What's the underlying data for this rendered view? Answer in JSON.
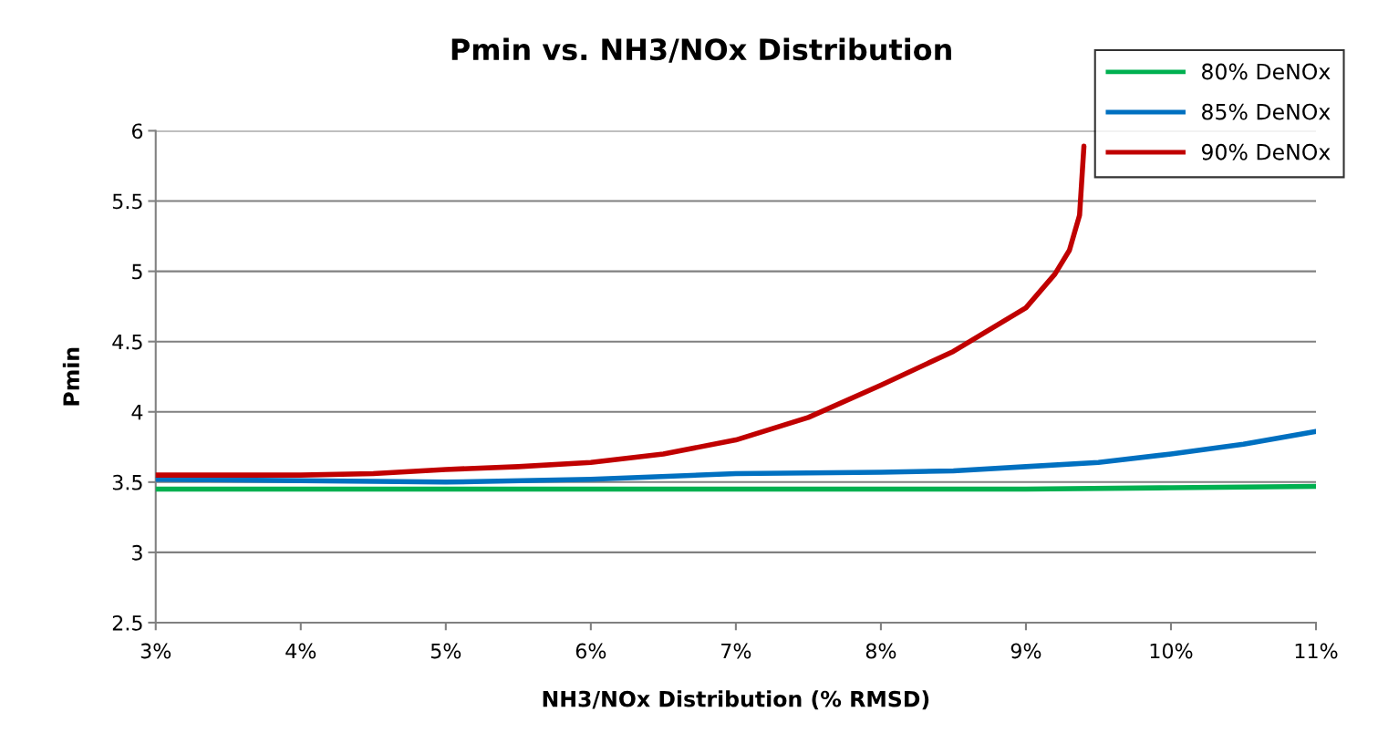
{
  "chart_data": {
    "type": "line",
    "title": "Pmin vs. NH3/NOx Distribution",
    "xlabel": "NH3/NOx Distribution (% RMSD)",
    "ylabel": "Pmin",
    "xlim": [
      3,
      11
    ],
    "xticks": [
      {
        "value": 3,
        "label": "3%"
      },
      {
        "value": 4,
        "label": "4%"
      },
      {
        "value": 5,
        "label": "5%"
      },
      {
        "value": 6,
        "label": "6%"
      },
      {
        "value": 7,
        "label": "7%"
      },
      {
        "value": 8,
        "label": "8%"
      },
      {
        "value": 9,
        "label": "9%"
      },
      {
        "value": 10,
        "label": "10%"
      },
      {
        "value": 11,
        "label": "11%"
      }
    ],
    "ylim": [
      2.5,
      6
    ],
    "yticks": [
      2.5,
      3,
      3.5,
      4,
      4.5,
      5,
      5.5,
      6
    ],
    "grid": "y",
    "legend": "top right",
    "marker": "none",
    "line_style": "solid",
    "series": [
      {
        "name": "80% DeNOx",
        "color": "#00b050",
        "x": [
          3,
          4,
          5,
          6,
          7,
          8,
          9,
          10,
          11
        ],
        "values": [
          3.45,
          3.45,
          3.45,
          3.45,
          3.45,
          3.45,
          3.45,
          3.46,
          3.47
        ]
      },
      {
        "name": "85% DeNOx",
        "color": "#0070c0",
        "x": [
          3,
          4,
          5,
          6,
          7,
          8,
          8.5,
          9,
          9.5,
          10,
          10.5,
          11
        ],
        "values": [
          3.52,
          3.51,
          3.5,
          3.52,
          3.56,
          3.57,
          3.58,
          3.61,
          3.64,
          3.7,
          3.77,
          3.86
        ]
      },
      {
        "name": "90% DeNOx",
        "color": "#c00000",
        "x": [
          3,
          4,
          4.5,
          5,
          5.5,
          6,
          6.5,
          7,
          7.5,
          8,
          8.5,
          9,
          9.2,
          9.3,
          9.37,
          9.4
        ],
        "values": [
          3.55,
          3.55,
          3.56,
          3.59,
          3.61,
          3.64,
          3.7,
          3.8,
          3.96,
          4.19,
          4.43,
          4.74,
          4.98,
          5.15,
          5.4,
          5.89
        ]
      }
    ]
  }
}
